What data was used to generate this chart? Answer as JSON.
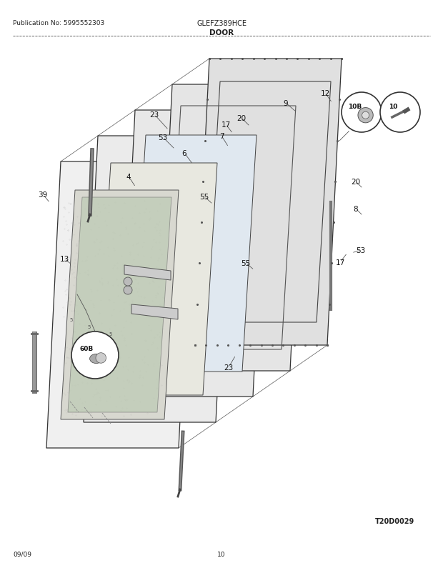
{
  "pub_no": "Publication No: 5995552303",
  "model": "GLEFZ389HCE",
  "section": "DOOR",
  "diagram_ref": "T20D0029",
  "date": "09/09",
  "page": "10",
  "bg_color": "#ffffff",
  "text_color": "#222222",
  "line_color": "#444444"
}
